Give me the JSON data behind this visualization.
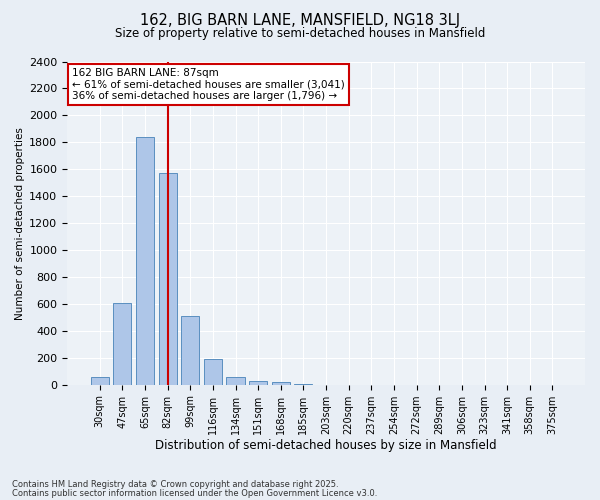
{
  "title_line1": "162, BIG BARN LANE, MANSFIELD, NG18 3LJ",
  "title_line2": "Size of property relative to semi-detached houses in Mansfield",
  "xlabel": "Distribution of semi-detached houses by size in Mansfield",
  "ylabel": "Number of semi-detached properties",
  "categories": [
    "30sqm",
    "47sqm",
    "65sqm",
    "82sqm",
    "99sqm",
    "116sqm",
    "134sqm",
    "151sqm",
    "168sqm",
    "185sqm",
    "203sqm",
    "220sqm",
    "237sqm",
    "254sqm",
    "272sqm",
    "289sqm",
    "306sqm",
    "323sqm",
    "341sqm",
    "358sqm",
    "375sqm"
  ],
  "values": [
    60,
    610,
    1840,
    1575,
    510,
    190,
    60,
    30,
    20,
    5,
    0,
    0,
    0,
    0,
    0,
    0,
    0,
    0,
    0,
    0,
    0
  ],
  "bar_color": "#aec6e8",
  "bar_edge_color": "#5a8fc0",
  "vline_x_index": 3,
  "vline_color": "#cc0000",
  "annotation_text": "162 BIG BARN LANE: 87sqm\n← 61% of semi-detached houses are smaller (3,041)\n36% of semi-detached houses are larger (1,796) →",
  "annotation_box_color": "#cc0000",
  "ylim": [
    0,
    2400
  ],
  "yticks": [
    0,
    200,
    400,
    600,
    800,
    1000,
    1200,
    1400,
    1600,
    1800,
    2000,
    2200,
    2400
  ],
  "footnote_line1": "Contains HM Land Registry data © Crown copyright and database right 2025.",
  "footnote_line2": "Contains public sector information licensed under the Open Government Licence v3.0.",
  "bg_color": "#e8eef5",
  "plot_bg_color": "#edf2f7"
}
